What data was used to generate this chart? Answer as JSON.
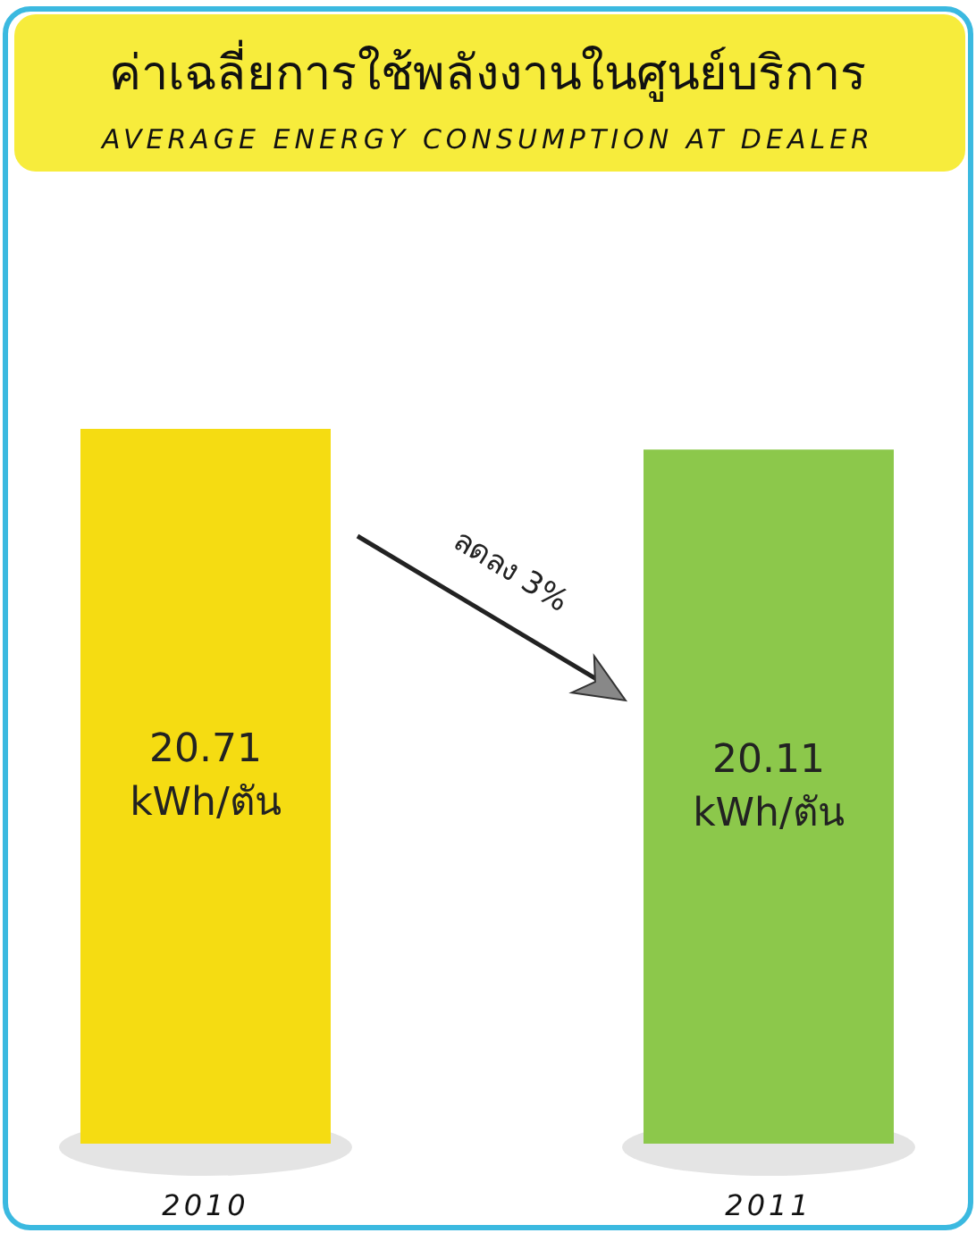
{
  "chart_data": {
    "type": "bar",
    "title": "ค่าเฉลี่ยการใช้พลังงานในศูนย์บริการ",
    "subtitle": "AVERAGE ENERGY CONSUMPTION AT DEALER",
    "categories": [
      "2010",
      "2011"
    ],
    "values": [
      20.71,
      20.11
    ],
    "colors": [
      "#f5dc12",
      "#8cc84b"
    ],
    "value_labels": [
      "20.71 kWh/ตัน",
      "20.11 kWh/ตัน"
    ],
    "annotations": [
      "ลดลง 3%"
    ]
  }
}
